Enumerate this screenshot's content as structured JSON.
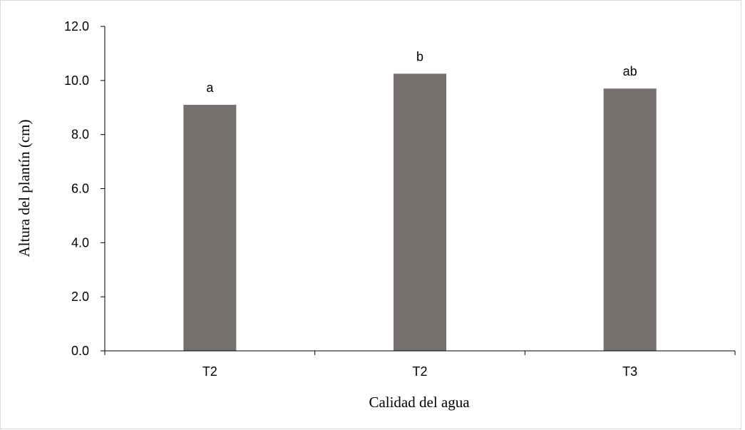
{
  "chart_data": {
    "type": "bar",
    "title": "",
    "xlabel": "Calidad del agua",
    "ylabel": "Altura del plantín (cm)",
    "categories": [
      "T2",
      "T2",
      "T3"
    ],
    "values": [
      9.1,
      10.25,
      9.7
    ],
    "data_labels": [
      "a",
      "b",
      "ab"
    ],
    "ylim": [
      0,
      12
    ],
    "y_ticks": [
      "0.0",
      "2.0",
      "4.0",
      "6.0",
      "8.0",
      "10.0",
      "12.0"
    ],
    "grid": false,
    "legend": "none",
    "bar_color": "#75706e"
  }
}
